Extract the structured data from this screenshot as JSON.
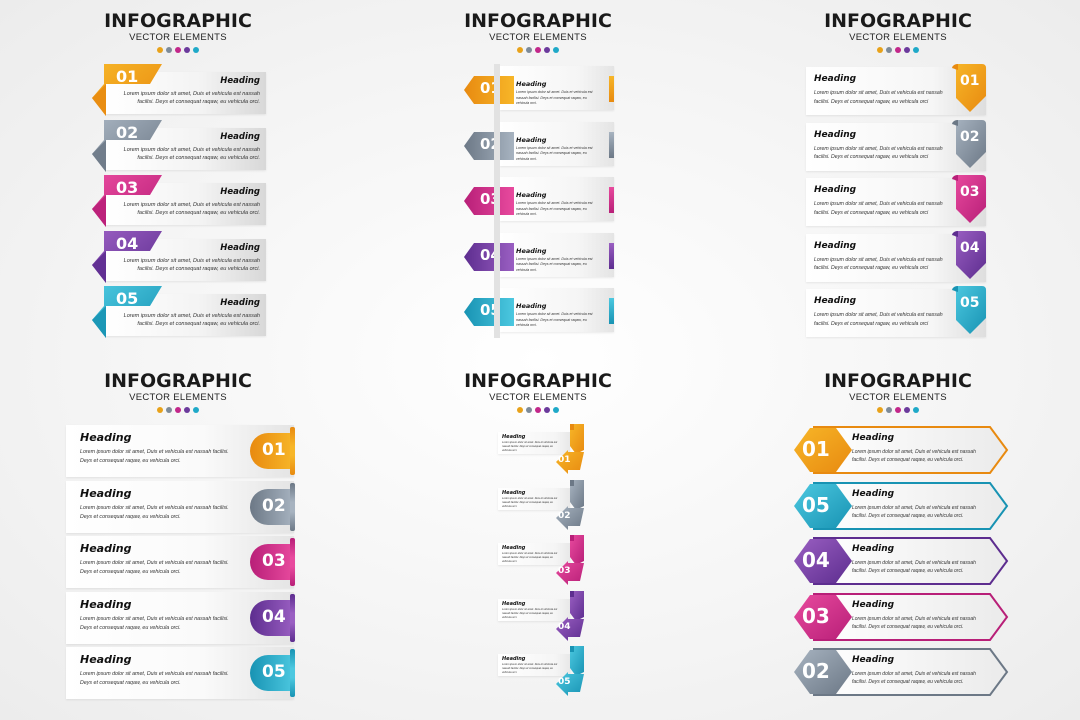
{
  "title": {
    "main": "INFOGRAPHIC",
    "sub": "VECTOR ELEMENTS",
    "dot_colors": [
      "#e8a21a",
      "#7d8b99",
      "#c2278a",
      "#6b3a9c",
      "#1fa9c8"
    ]
  },
  "palette": {
    "orange": [
      "#f7b628",
      "#e88a10"
    ],
    "gray": [
      "#a7b3c0",
      "#6c7886"
    ],
    "magenta": [
      "#e84a9e",
      "#b81f78"
    ],
    "purple": [
      "#9a5fc2",
      "#5d2d8f"
    ],
    "cyan": [
      "#4cc8e0",
      "#1893b3"
    ]
  },
  "item_text": {
    "heading": "Heading",
    "body": "Lorem ipsum dolor sit amet, Duis et vehicula est nassah facilisi. Deys et consequat raqaw, eu vehicula orci."
  },
  "panels": [
    {
      "id": "panel-1",
      "title": "INFOGRAPHIC",
      "subtitle": "VECTOR ELEMENTS",
      "items": [
        {
          "num": "01",
          "color": "orange",
          "heading": "Heading",
          "body": "Lorem ipsum dolor sit amet, Duis et vehicula est nassah facilisi. Deys et consequat raqaw, eu vehicula orci."
        },
        {
          "num": "02",
          "color": "gray",
          "heading": "Heading",
          "body": "Lorem ipsum dolor sit amet, Duis et vehicula est nassah facilisi. Deys et consequat raqaw, eu vehicula orci."
        },
        {
          "num": "03",
          "color": "magenta",
          "heading": "Heading",
          "body": "Lorem ipsum dolor sit amet, Duis et vehicula est nassah facilisi. Deys et consequat raqaw, eu vehicula orci."
        },
        {
          "num": "04",
          "color": "purple",
          "heading": "Heading",
          "body": "Lorem ipsum dolor sit amet, Duis et vehicula est nassah facilisi. Deys et consequat raqaw, eu vehicula orci."
        },
        {
          "num": "05",
          "color": "cyan",
          "heading": "Heading",
          "body": "Lorem ipsum dolor sit amet, Duis et vehicula est nassah facilisi. Deys et consequat raqaw, eu vehicula orci."
        }
      ]
    },
    {
      "id": "panel-2",
      "title": "INFOGRAPHIC",
      "subtitle": "VECTOR ELEMENTS",
      "items": [
        {
          "num": "01",
          "color": "orange",
          "heading": "Heading",
          "body": "Lorem ipsum dolor sit amet. Duis et vehicula est nassah facilisi. Deys et consequat raqaw, eu vehicula orci."
        },
        {
          "num": "02",
          "color": "gray",
          "heading": "Heading",
          "body": "Lorem ipsum dolor sit amet. Duis et vehicula est nassah facilisi. Deys et consequat raqaw, eu vehicula orci."
        },
        {
          "num": "03",
          "color": "magenta",
          "heading": "Heading",
          "body": "Lorem ipsum dolor sit amet. Duis et vehicula est nassah facilisi. Deys et consequat raqaw, eu vehicula orci."
        },
        {
          "num": "04",
          "color": "purple",
          "heading": "Heading",
          "body": "Lorem ipsum dolor sit amet. Duis et vehicula est nassah facilisi. Deys et consequat raqaw, eu vehicula orci."
        },
        {
          "num": "05",
          "color": "cyan",
          "heading": "Heading",
          "body": "Lorem ipsum dolor sit amet. Duis et vehicula est nassah facilisi. Deys et consequat raqaw, eu vehicula orci."
        }
      ]
    },
    {
      "id": "panel-3",
      "title": "INFOGRAPHIC",
      "subtitle": "VECTOR ELEMENTS",
      "items": [
        {
          "num": "01",
          "color": "orange",
          "heading": "Heading",
          "body": "Lorem ipsum dolor sit amet, Duis et vehicula est nassah facilisi. Deys et consequat ragaw, eu vehicula orci"
        },
        {
          "num": "02",
          "color": "gray",
          "heading": "Heading",
          "body": "Lorem ipsum dolor sit amet, Duis et vehicula est nassah facilisi. Deys et consequat ragaw, eu vehicula orci"
        },
        {
          "num": "03",
          "color": "magenta",
          "heading": "Heading",
          "body": "Lorem ipsum dolor sit amet, Duis et vehicula est nassah facilisi. Deys et consequat ragaw, eu vehicula orci"
        },
        {
          "num": "04",
          "color": "purple",
          "heading": "Heading",
          "body": "Lorem ipsum dolor sit amet, Duis et vehicula est nassah facilisi. Deys et consequat ragaw, eu vehicula orci"
        },
        {
          "num": "05",
          "color": "cyan",
          "heading": "Heading",
          "body": "Lorem ipsum dolor sit amet, Duis et vehicula est nassah facilisi. Deys et consequat ragaw, eu vehicula orci"
        }
      ]
    },
    {
      "id": "panel-4",
      "title": "INFOGRAPHIC",
      "subtitle": "VECTOR ELEMENTS",
      "items": [
        {
          "num": "01",
          "color": "orange",
          "heading": "Heading",
          "body": "Lorem ipsum dolor sit amet, Duis et vehicula est nassah facilisi. Deys et consequat raqaw, eu vehicula orci."
        },
        {
          "num": "02",
          "color": "gray",
          "heading": "Heading",
          "body": "Lorem ipsum dolor sit amet, Duis et vehicula est nassah facilisi. Deys et consequat raqaw, eu vehicula orci."
        },
        {
          "num": "03",
          "color": "magenta",
          "heading": "Heading",
          "body": "Lorem ipsum dolor sit amet, Duis et vehicula est nassah facilisi. Deys et consequat raqaw, eu vehicula orci."
        },
        {
          "num": "04",
          "color": "purple",
          "heading": "Heading",
          "body": "Lorem ipsum dolor sit amet, Duis et vehicula est nassah facilisi. Deys et consequat raqaw, eu vehicula orci."
        },
        {
          "num": "05",
          "color": "cyan",
          "heading": "Heading",
          "body": "Lorem ipsum dolor sit amet, Duis et vehicula est nassah facilisi. Deys et consequat raqaw, eu vehicula orci."
        }
      ]
    },
    {
      "id": "panel-5",
      "title": "INFOGRAPHIC",
      "subtitle": "VECTOR ELEMENTS",
      "items": [
        {
          "num": "01",
          "color": "orange",
          "heading": "Heading",
          "body": "Lorem ipsum dolor sit amet. Duis et vehicula est nassah facilisi. Deys et consequat raqaw, eu vehicula orci."
        },
        {
          "num": "02",
          "color": "gray",
          "heading": "Heading",
          "body": "Lorem ipsum dolor sit amet. Duis et vehicula est nassah facilisi. Deys et consequat raqaw, eu vehicula orci."
        },
        {
          "num": "03",
          "color": "magenta",
          "heading": "Heading",
          "body": "Lorem ipsum dolor sit amet. Duis et vehicula est nassah facilisi. Deys et consequat raqaw, eu vehicula orci."
        },
        {
          "num": "04",
          "color": "purple",
          "heading": "Heading",
          "body": "Lorem ipsum dolor sit amet. Duis et vehicula est nassah facilisi. Deys et consequat raqaw, eu vehicula orci."
        },
        {
          "num": "05",
          "color": "cyan",
          "heading": "Heading",
          "body": "Lorem ipsum dolor sit amet. Duis et vehicula est nassah facilisi. Deys et consequat raqaw, eu vehicula orci."
        }
      ]
    },
    {
      "id": "panel-6",
      "title": "INFOGRAPHIC",
      "subtitle": "VECTOR ELEMENTS",
      "items": [
        {
          "num": "01",
          "color": "orange",
          "heading": "Heading",
          "body": "Lorem ipsum dolor sit amet, Duis et vehicula est nassah facilisi. Deys et consequat raqaw, eu vehicula orci."
        },
        {
          "num": "05",
          "color": "cyan",
          "heading": "Heading",
          "body": "Lorem ipsum dolor sit amet, Duis et vehicula est nassah facilisi. Deys et consequat raqaw, eu vehicula orci."
        },
        {
          "num": "04",
          "color": "purple",
          "heading": "Heading",
          "body": "Lorem ipsum dolor sit amet, Duis et vehicula est nassah facilisi. Deys et consequat raqaw, eu vehicula orci."
        },
        {
          "num": "03",
          "color": "magenta",
          "heading": "Heading",
          "body": "Lorem ipsum dolor sit amet, Duis et vehicula est nassah facilisi. Deys et consequat raqaw, eu vehicula orci."
        },
        {
          "num": "02",
          "color": "gray",
          "heading": "Heading",
          "body": "Lorem ipsum dolor sit amet, Duis et vehicula est nassah facilisi. Deys et consequat raqaw, eu vehicula orci."
        }
      ]
    }
  ]
}
